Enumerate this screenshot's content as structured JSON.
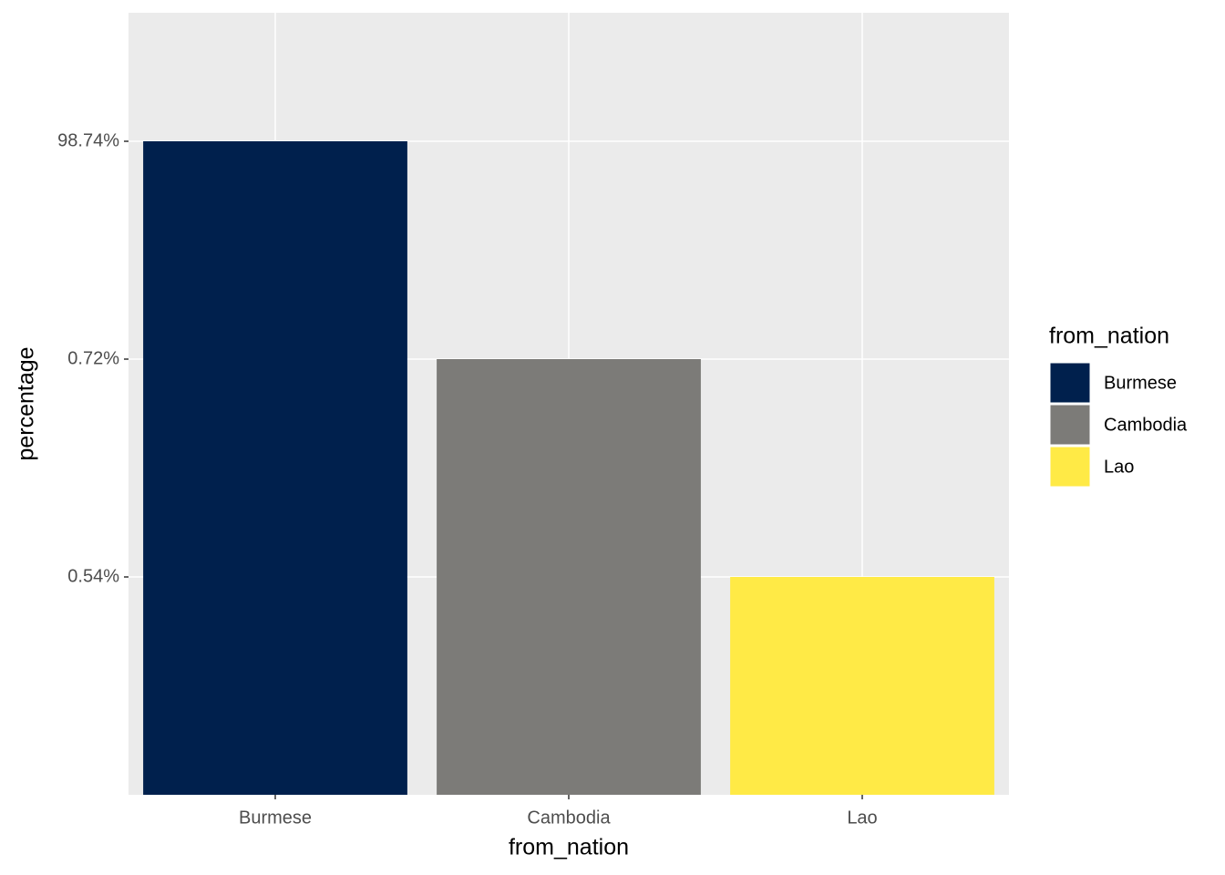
{
  "chart_data": {
    "type": "bar",
    "x_label": "from_nation",
    "y_label": "percentage",
    "categories": [
      "Burmese",
      "Cambodia",
      "Lao"
    ],
    "values": [
      98.74,
      0.72,
      0.54
    ],
    "colors": [
      "#00204d",
      "#7c7b78",
      "#ffea46"
    ],
    "y_scale": "discrete",
    "yticks": [
      {
        "value": 0.54,
        "label": "0.54%"
      },
      {
        "value": 0.72,
        "label": "0.72%"
      },
      {
        "value": 98.74,
        "label": "98.74%"
      }
    ],
    "grid": true,
    "legend_title": "from_nation",
    "legend_position": "right"
  }
}
